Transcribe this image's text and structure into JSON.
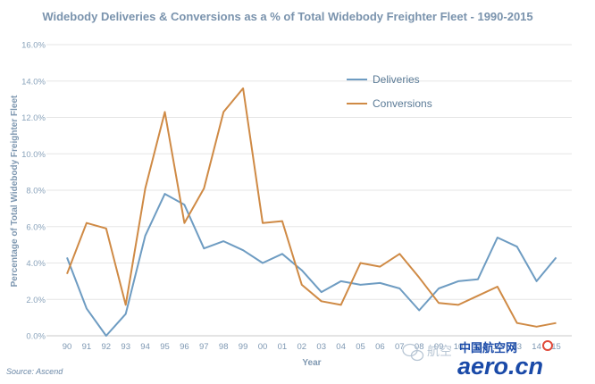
{
  "chart_data": {
    "type": "line",
    "title": "Widebody Deliveries & Conversions as a % of Total Widebody Freighter Fleet - 1990-2015",
    "xlabel": "Year",
    "ylabel": "Percentage of Total Widebody Freighter Fleet",
    "categories": [
      "90",
      "91",
      "92",
      "93",
      "94",
      "95",
      "96",
      "97",
      "98",
      "99",
      "00",
      "01",
      "02",
      "03",
      "04",
      "05",
      "06",
      "07",
      "08",
      "09",
      "10",
      "11",
      "12",
      "13",
      "14",
      "15"
    ],
    "y_ticks": [
      "0.0%",
      "2.0%",
      "4.0%",
      "6.0%",
      "8.0%",
      "10.0%",
      "12.0%",
      "14.0%",
      "16.0%"
    ],
    "ylim": [
      0,
      16
    ],
    "grid": true,
    "legend_position": "top-right",
    "series": [
      {
        "name": "Deliveries",
        "color": "#6e9cc2",
        "values": [
          4.3,
          1.5,
          0.0,
          1.2,
          5.5,
          7.8,
          7.2,
          4.8,
          5.2,
          4.7,
          4.0,
          4.5,
          3.6,
          2.4,
          3.0,
          2.8,
          2.9,
          2.6,
          1.4,
          2.6,
          3.0,
          3.1,
          5.4,
          4.9,
          3.0,
          4.3
        ]
      },
      {
        "name": "Conversions",
        "color": "#cf8a45",
        "values": [
          3.4,
          6.2,
          5.9,
          1.7,
          8.1,
          12.3,
          6.2,
          8.1,
          12.3,
          13.6,
          6.2,
          6.3,
          2.8,
          1.9,
          1.7,
          4.0,
          3.8,
          4.5,
          3.2,
          1.8,
          1.7,
          2.2,
          2.7,
          0.7,
          0.5,
          0.7
        ]
      }
    ],
    "source": "Source: Ascend"
  },
  "watermark": {
    "wechat": "航空",
    "cn": "中国航空网",
    "brand": "aero.cn"
  }
}
